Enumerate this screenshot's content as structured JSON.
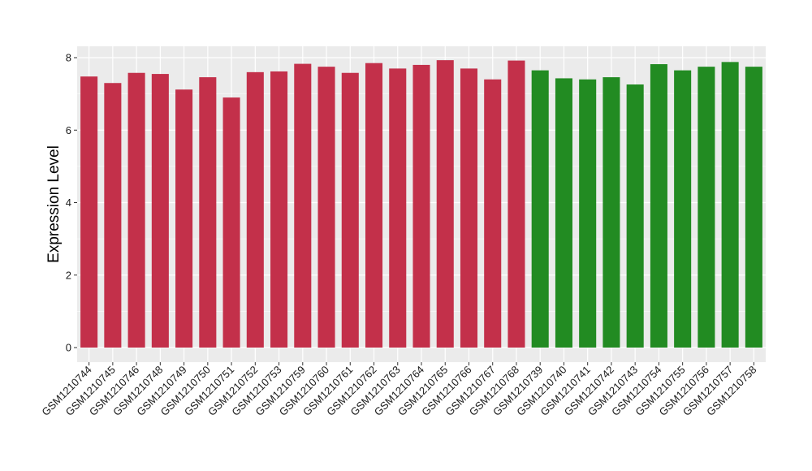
{
  "chart_data": {
    "type": "bar",
    "title": "",
    "xlabel": "",
    "ylabel": "Expression Level",
    "ylim": [
      0,
      8.4
    ],
    "yticks": [
      0,
      2,
      4,
      6,
      8
    ],
    "grid": true,
    "legend": "none",
    "colors": {
      "group_a": "#c3304a",
      "group_b": "#228b22",
      "panel": "#ebebeb",
      "grid": "#ffffff"
    },
    "categories": [
      "GSM1210744",
      "GSM1210745",
      "GSM1210746",
      "GSM1210748",
      "GSM1210749",
      "GSM1210750",
      "GSM1210751",
      "GSM1210752",
      "GSM1210753",
      "GSM1210759",
      "GSM1210760",
      "GSM1210761",
      "GSM1210762",
      "GSM1210763",
      "GSM1210764",
      "GSM1210765",
      "GSM1210766",
      "GSM1210767",
      "GSM1210768",
      "GSM1210739",
      "GSM1210740",
      "GSM1210741",
      "GSM1210742",
      "GSM1210743",
      "GSM1210754",
      "GSM1210755",
      "GSM1210756",
      "GSM1210757",
      "GSM1210758"
    ],
    "values": [
      7.48,
      7.3,
      7.58,
      7.55,
      7.12,
      7.46,
      6.9,
      7.6,
      7.62,
      7.83,
      7.75,
      7.58,
      7.85,
      7.7,
      7.8,
      7.93,
      7.7,
      7.4,
      7.92,
      7.65,
      7.43,
      7.4,
      7.46,
      7.26,
      7.82,
      7.65,
      7.75,
      7.88,
      7.75
    ],
    "groups": [
      "a",
      "a",
      "a",
      "a",
      "a",
      "a",
      "a",
      "a",
      "a",
      "a",
      "a",
      "a",
      "a",
      "a",
      "a",
      "a",
      "a",
      "a",
      "a",
      "b",
      "b",
      "b",
      "b",
      "b",
      "b",
      "b",
      "b",
      "b",
      "b"
    ]
  }
}
